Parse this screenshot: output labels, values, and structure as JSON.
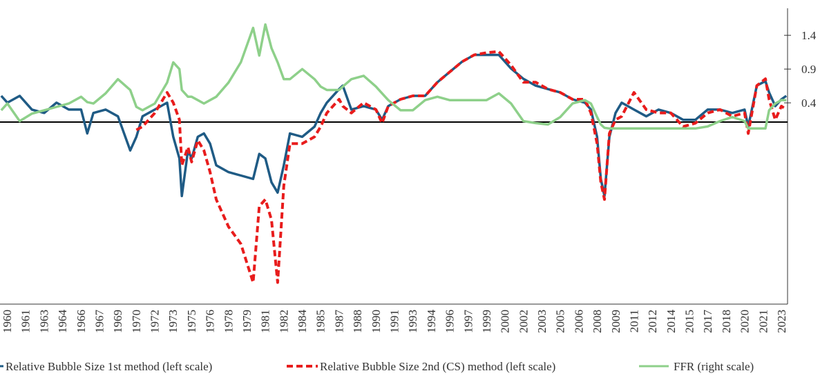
{
  "chart_data": {
    "type": "line",
    "x_tick_labels": [
      "1960",
      "1961",
      "1963",
      "1964",
      "1966",
      "1967",
      "1969",
      "1970",
      "1972",
      "1973",
      "1975",
      "1976",
      "1978",
      "1979",
      "1981",
      "1982",
      "1984",
      "1985",
      "1987",
      "1988",
      "1990",
      "1991",
      "1993",
      "1994",
      "1996",
      "1997",
      "1999",
      "2000",
      "2002",
      "2003",
      "2005",
      "2006",
      "2008",
      "2009",
      "2011",
      "2012",
      "2014",
      "2015",
      "2017",
      "2018",
      "2020",
      "2021",
      "2023"
    ],
    "xlim": [
      1959.4,
      2023.5
    ],
    "x": [
      1959.5,
      1960,
      1961,
      1962,
      1963,
      1964,
      1965,
      1966,
      1966.5,
      1967,
      1968,
      1969,
      1970,
      1970.5,
      1971,
      1972,
      1973,
      1973.5,
      1974,
      1974.2,
      1974.7,
      1975,
      1975.5,
      1976,
      1976.5,
      1977,
      1978,
      1979,
      1980,
      1980.5,
      1981,
      1981.5,
      1982,
      1982.5,
      1983,
      1984,
      1985,
      1985.5,
      1986,
      1987,
      1987.3,
      1988,
      1989,
      1990,
      1990.5,
      1991,
      1992,
      1993,
      1994,
      1995,
      1996,
      1997,
      1998,
      1999,
      2000,
      2001,
      2002,
      2003,
      2004,
      2005,
      2006,
      2007,
      2007.5,
      2008,
      2008.3,
      2008.6,
      2009,
      2009.5,
      2010,
      2011,
      2012,
      2013,
      2014,
      2015,
      2016,
      2017,
      2018,
      2019,
      2020,
      2020.3,
      2021,
      2021.7,
      2022,
      2022.5,
      2023,
      2023.4
    ],
    "ylim": [
      -1.6,
      1.0
    ],
    "y2lim": [
      -2.58,
      1.8
    ],
    "y2ticks": [
      0.4,
      0.9,
      1.4
    ],
    "series": [
      {
        "name": "Relative Bubble Size 1st method (left scale)",
        "color": "#1f5b85",
        "dash": false,
        "values": [
          0.23,
          0.17,
          0.23,
          0.11,
          0.08,
          0.17,
          0.11,
          0.11,
          -0.1,
          0.08,
          0.11,
          0.05,
          -0.25,
          -0.13,
          0.05,
          0.11,
          0.17,
          -0.13,
          -0.32,
          -0.65,
          -0.25,
          -0.32,
          -0.13,
          -0.1,
          -0.19,
          -0.38,
          -0.44,
          -0.47,
          -0.5,
          -0.28,
          -0.32,
          -0.53,
          -0.62,
          -0.38,
          -0.1,
          -0.13,
          -0.04,
          0.08,
          0.17,
          0.29,
          0.32,
          0.11,
          0.14,
          0.11,
          0.02,
          0.14,
          0.2,
          0.23,
          0.23,
          0.35,
          0.44,
          0.53,
          0.59,
          0.59,
          0.59,
          0.47,
          0.38,
          0.32,
          0.29,
          0.26,
          0.2,
          0.17,
          0.11,
          -0.13,
          -0.5,
          -0.65,
          -0.13,
          0.08,
          0.17,
          0.11,
          0.05,
          0.11,
          0.08,
          0.02,
          0.02,
          0.11,
          0.11,
          0.08,
          0.11,
          -0.04,
          0.32,
          0.36,
          0.26,
          0.14,
          0.2,
          0.23
        ]
      },
      {
        "name": "Relative Bubble Size 2nd (CS) method (left scale)",
        "color": "#e81c1c",
        "dash": true,
        "values": [
          null,
          null,
          null,
          null,
          null,
          null,
          null,
          null,
          null,
          null,
          null,
          null,
          null,
          -0.07,
          -0.04,
          0.08,
          0.26,
          0.17,
          0.02,
          -0.38,
          -0.22,
          -0.35,
          -0.16,
          -0.25,
          -0.44,
          -0.68,
          -0.92,
          -1.07,
          -1.41,
          -0.74,
          -0.68,
          -0.86,
          -1.41,
          -0.56,
          -0.19,
          -0.19,
          -0.13,
          -0.04,
          0.08,
          0.2,
          0.14,
          0.08,
          0.17,
          0.11,
          -0.01,
          0.14,
          0.2,
          0.23,
          0.23,
          0.35,
          0.44,
          0.53,
          0.59,
          0.61,
          0.62,
          0.5,
          0.35,
          0.35,
          0.29,
          0.26,
          0.2,
          0.2,
          0.08,
          -0.19,
          -0.53,
          -0.68,
          -0.1,
          0.02,
          0.05,
          0.26,
          0.11,
          0.08,
          0.08,
          -0.04,
          -0.01,
          0.08,
          0.11,
          0.05,
          0.08,
          -0.1,
          0.32,
          0.38,
          0.2,
          0.02,
          0.14,
          0.11
        ]
      },
      {
        "name": "FFR (right scale)",
        "color": "#8ed08a",
        "dash": false,
        "axis": "y2",
        "values": [
          0.29,
          0.39,
          0.13,
          0.24,
          0.29,
          0.34,
          0.39,
          0.49,
          0.41,
          0.39,
          0.54,
          0.75,
          0.59,
          0.34,
          0.29,
          0.39,
          0.7,
          1.0,
          0.9,
          0.59,
          0.49,
          0.49,
          0.44,
          0.39,
          0.44,
          0.49,
          0.7,
          1.0,
          1.51,
          1.1,
          1.56,
          1.21,
          1.0,
          0.75,
          0.75,
          0.9,
          0.75,
          0.64,
          0.59,
          0.59,
          0.64,
          0.75,
          0.8,
          0.64,
          0.54,
          0.44,
          0.29,
          0.29,
          0.44,
          0.49,
          0.44,
          0.44,
          0.44,
          0.44,
          0.54,
          0.39,
          0.13,
          0.1,
          0.08,
          0.19,
          0.39,
          0.44,
          0.39,
          0.19,
          0.08,
          0.03,
          0.02,
          0.02,
          0.02,
          0.02,
          0.02,
          0.02,
          0.02,
          0.02,
          0.02,
          0.05,
          0.13,
          0.19,
          0.13,
          0.02,
          0.02,
          0.02,
          0.29,
          0.39,
          0.44,
          0.44
        ]
      }
    ]
  }
}
